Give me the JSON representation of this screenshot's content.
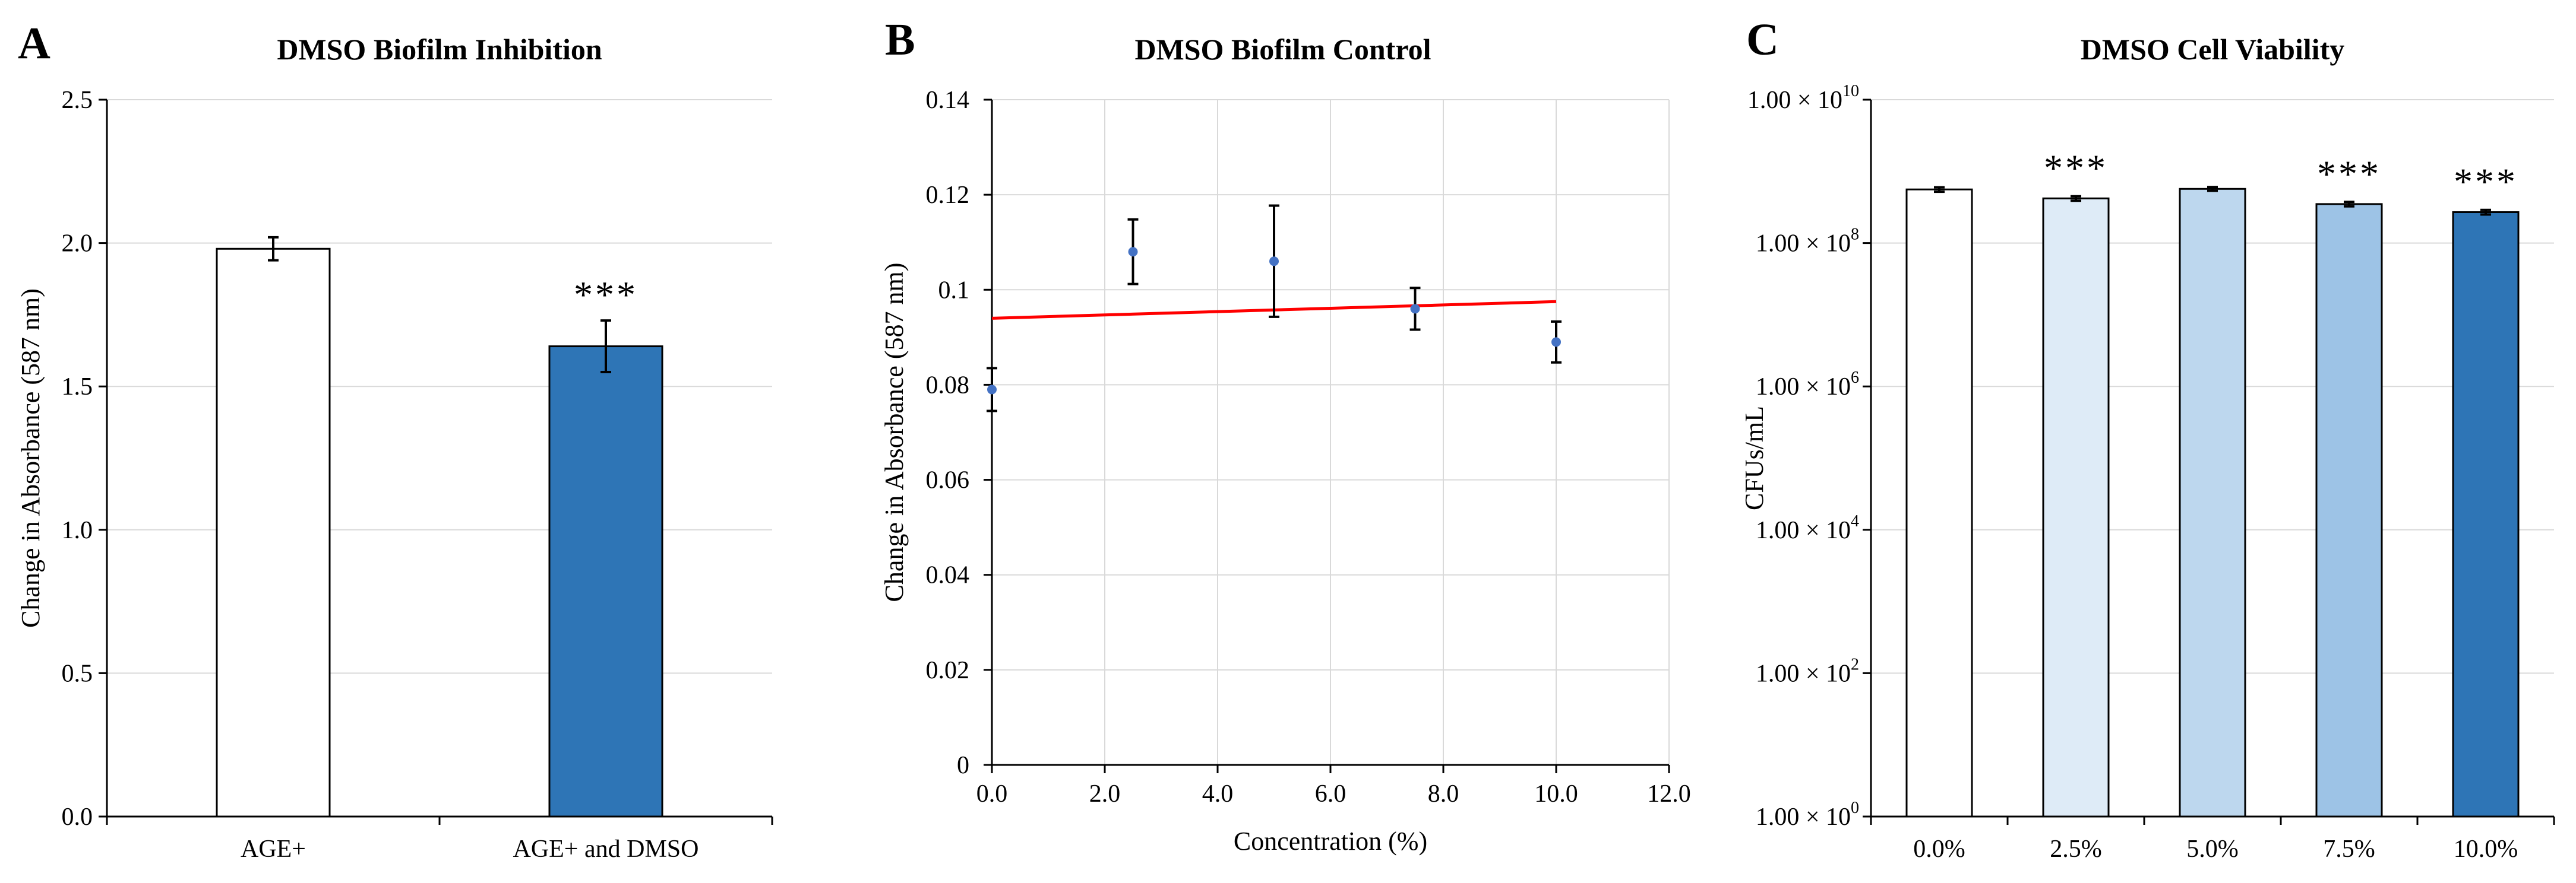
{
  "chart_data": [
    {
      "panel": "A",
      "type": "bar",
      "title": "DMSO Biofilm Inhibition",
      "xlabel": "",
      "ylabel": "Change in Absorbance (587 nm)",
      "ylim": [
        0,
        2.5
      ],
      "yticks": [
        "0.0",
        "0.5",
        "1.0",
        "1.5",
        "2.0",
        "2.5"
      ],
      "yticks_values": [
        0,
        0.5,
        1.0,
        1.5,
        2.0,
        2.5
      ],
      "grid": true,
      "categories": [
        "AGE+",
        "AGE+ and DMSO"
      ],
      "values": [
        1.98,
        1.64
      ],
      "errors": [
        0.04,
        0.09
      ],
      "colors": [
        "#ffffff",
        "#2e75b6"
      ],
      "annotations": [
        "",
        "***"
      ]
    },
    {
      "panel": "B",
      "type": "scatter",
      "title": "DMSO Biofilm Control",
      "xlabel": "Concentration (%)",
      "ylabel": "Change in Absorbance (587 nm)",
      "xlim": [
        0,
        12
      ],
      "ylim": [
        0,
        0.14
      ],
      "xticks": [
        "0.0",
        "2.0",
        "4.0",
        "6.0",
        "8.0",
        "10.0",
        "12.0"
      ],
      "xticks_values": [
        0,
        2,
        4,
        6,
        8,
        10,
        12
      ],
      "yticks": [
        "0",
        "0.02",
        "0.04",
        "0.06",
        "0.08",
        "0.1",
        "0.12",
        "0.14"
      ],
      "yticks_values": [
        0,
        0.02,
        0.04,
        0.06,
        0.08,
        0.1,
        0.12,
        0.14
      ],
      "grid": true,
      "x": [
        0,
        2.5,
        5.0,
        7.5,
        10.0
      ],
      "y": [
        0.079,
        0.108,
        0.106,
        0.096,
        0.089
      ],
      "errors": [
        0.0045,
        0.0068,
        0.0117,
        0.0044,
        0.0043
      ],
      "point_color": "#4472c4",
      "trendline": {
        "x": [
          0,
          10
        ],
        "y": [
          0.094,
          0.0975
        ],
        "color": "#ff0000"
      }
    },
    {
      "panel": "C",
      "type": "bar",
      "title": "DMSO Cell Viability",
      "xlabel": "",
      "ylabel": "CFUs/mL",
      "yscale": "log",
      "ylim": [
        1,
        10000000000
      ],
      "ytick_exponents": [
        0,
        2,
        4,
        6,
        8,
        10
      ],
      "ytick_base": "1.00 × 10",
      "grid": true,
      "categories": [
        "0.0%",
        "2.5%",
        "5.0%",
        "7.5%",
        "10.0%"
      ],
      "values": [
        560000000,
        420000000,
        570000000,
        350000000,
        270000000
      ],
      "err_low": [
        520000000,
        390000000,
        535000000,
        325000000,
        250000000
      ],
      "err_high": [
        600000000,
        450000000,
        605000000,
        375000000,
        290000000
      ],
      "colors": [
        "#ffffff",
        "#deebf7",
        "#bdd7ee",
        "#9dc3e6",
        "#2e75b6"
      ],
      "annotations": [
        "",
        "***",
        "",
        "***",
        "***"
      ]
    }
  ]
}
